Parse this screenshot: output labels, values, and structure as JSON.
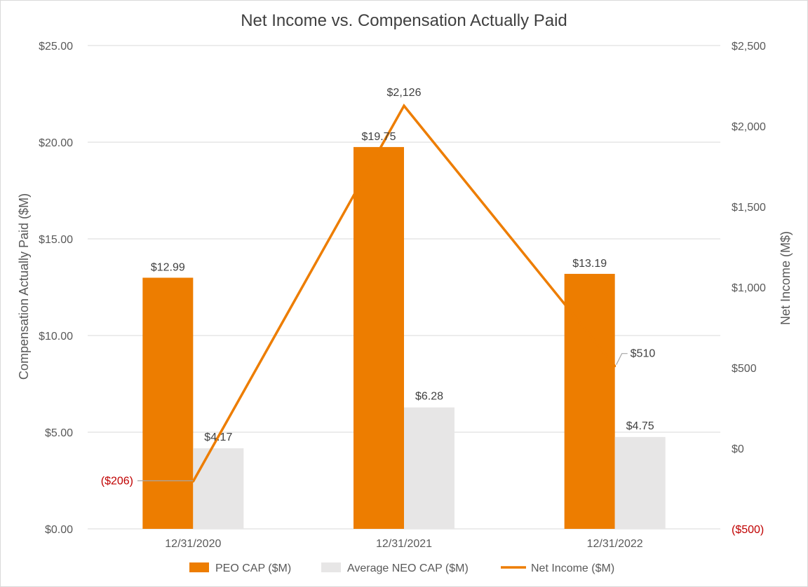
{
  "chart_data": {
    "type": "bar",
    "title": "Net Income vs. Compensation Actually Paid",
    "categories": [
      "12/31/2020",
      "12/31/2021",
      "12/31/2022"
    ],
    "series": [
      {
        "name": "PEO CAP ($M)",
        "type": "bar",
        "axis": "left",
        "values": [
          12.99,
          19.75,
          13.19
        ],
        "labels": [
          "$12.99",
          "$19.75",
          "$13.19"
        ]
      },
      {
        "name": "Average NEO CAP ($M)",
        "type": "bar",
        "axis": "left",
        "values": [
          4.17,
          6.28,
          4.75
        ],
        "labels": [
          "$4.17",
          "$6.28",
          "$4.75"
        ]
      },
      {
        "name": "Net Income ($M)",
        "type": "line",
        "axis": "right",
        "values": [
          -206,
          2126,
          510
        ],
        "labels": [
          "($206)",
          "$2,126",
          "$510"
        ]
      }
    ],
    "ylabel": "Compensation Actually Paid ($M)",
    "ylim": [
      0,
      25
    ],
    "y_ticks": [
      0,
      5,
      10,
      15,
      20,
      25
    ],
    "y_tick_labels": [
      "$0.00",
      "$5.00",
      "$10.00",
      "$15.00",
      "$20.00",
      "$25.00"
    ],
    "y2label": "Net Income (M$)",
    "y2lim": [
      -500,
      2500
    ],
    "y2_ticks": [
      -500,
      0,
      500,
      1000,
      1500,
      2000,
      2500
    ],
    "y2_tick_labels": [
      "($500)",
      "$0",
      "$500",
      "$1,000",
      "$1,500",
      "$2,000",
      "$2,500"
    ],
    "grid": true,
    "legend_position": "bottom",
    "colors": {
      "peo": "#ed7d00",
      "neo": "#e7e6e6",
      "net": "#ed7d00",
      "negative": "#c00000",
      "grid": "#d9d9d9"
    }
  }
}
